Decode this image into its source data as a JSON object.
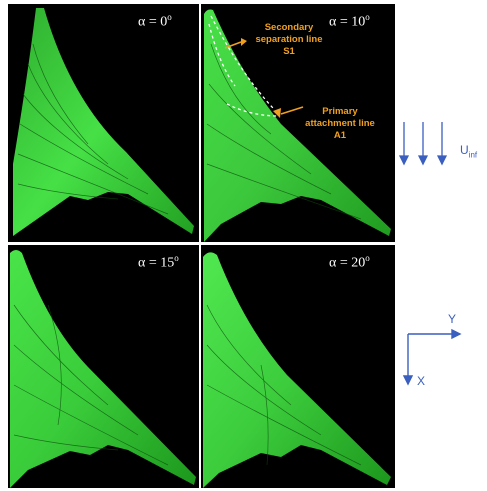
{
  "panels": [
    {
      "alpha_label": "α = 0",
      "degree": "o"
    },
    {
      "alpha_label": "α = 10",
      "degree": "o"
    },
    {
      "alpha_label": "α = 15",
      "degree": "o"
    },
    {
      "alpha_label": "α = 20",
      "degree": "o"
    }
  ],
  "annotations": {
    "secondary_line1": "Secondary",
    "secondary_line2": "separation line",
    "secondary_line3": "S1",
    "primary_line1": "Primary",
    "primary_line2": "attachment line",
    "primary_line3": "A1"
  },
  "freestream": {
    "symbol": "U",
    "subscript": "inf"
  },
  "axes": {
    "horizontal": "Y",
    "vertical": "X"
  },
  "colors": {
    "annotation": "#f0a020",
    "axis": "#3a5fbf",
    "surface": "#3cd83c",
    "background": "#000000"
  }
}
